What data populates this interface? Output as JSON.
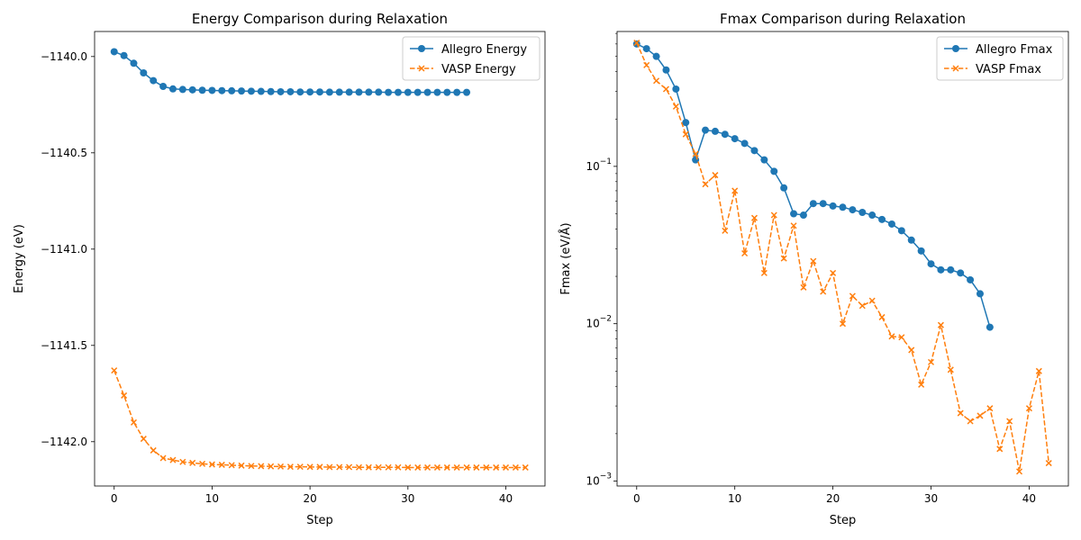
{
  "colors": {
    "allegro": "#1f77b4",
    "vasp": "#ff7f0e"
  },
  "chart_data": [
    {
      "type": "line",
      "title": "Energy Comparison during Relaxation",
      "xlabel": "Step",
      "ylabel": "Energy (eV)",
      "xlim": [
        -2,
        44
      ],
      "ylim": [
        -1142.23,
        -1139.87
      ],
      "xticks": [
        {
          "value": 0,
          "label": "0"
        },
        {
          "value": 10,
          "label": "10"
        },
        {
          "value": 20,
          "label": "20"
        },
        {
          "value": 30,
          "label": "30"
        },
        {
          "value": 40,
          "label": "40"
        }
      ],
      "yticks": [
        {
          "value": -1140.0,
          "label": "−1140.0"
        },
        {
          "value": -1140.5,
          "label": "−1140.5"
        },
        {
          "value": -1141.0,
          "label": "−1141.0"
        },
        {
          "value": -1141.5,
          "label": "−1141.5"
        },
        {
          "value": -1142.0,
          "label": "−1142.0"
        }
      ],
      "yscale": "linear",
      "grid": false,
      "legend": "top-right",
      "series": [
        {
          "name": "Allegro Energy",
          "color": "#1f77b4",
          "linestyle": "solid",
          "marker": "circle",
          "x": [
            0,
            1,
            2,
            3,
            4,
            5,
            6,
            7,
            8,
            9,
            10,
            11,
            12,
            13,
            14,
            15,
            16,
            17,
            18,
            19,
            20,
            21,
            22,
            23,
            24,
            25,
            26,
            27,
            28,
            29,
            30,
            31,
            32,
            33,
            34,
            35,
            36
          ],
          "values": [
            -1139.975,
            -1139.995,
            -1140.035,
            -1140.085,
            -1140.125,
            -1140.155,
            -1140.168,
            -1140.171,
            -1140.173,
            -1140.175,
            -1140.176,
            -1140.177,
            -1140.178,
            -1140.179,
            -1140.18,
            -1140.181,
            -1140.182,
            -1140.183,
            -1140.183,
            -1140.184,
            -1140.184,
            -1140.184,
            -1140.185,
            -1140.185,
            -1140.185,
            -1140.185,
            -1140.185,
            -1140.185,
            -1140.186,
            -1140.186,
            -1140.186,
            -1140.186,
            -1140.186,
            -1140.186,
            -1140.186,
            -1140.186,
            -1140.186
          ]
        },
        {
          "name": "VASP Energy",
          "color": "#ff7f0e",
          "linestyle": "dashed",
          "marker": "x",
          "x": [
            0,
            1,
            2,
            3,
            4,
            5,
            6,
            7,
            8,
            9,
            10,
            11,
            12,
            13,
            14,
            15,
            16,
            17,
            18,
            19,
            20,
            21,
            22,
            23,
            24,
            25,
            26,
            27,
            28,
            29,
            30,
            31,
            32,
            33,
            34,
            35,
            36,
            37,
            38,
            39,
            40,
            41,
            42
          ],
          "values": [
            -1141.63,
            -1141.76,
            -1141.9,
            -1141.985,
            -1142.045,
            -1142.085,
            -1142.095,
            -1142.105,
            -1142.11,
            -1142.115,
            -1142.118,
            -1142.12,
            -1142.122,
            -1142.124,
            -1142.126,
            -1142.127,
            -1142.128,
            -1142.129,
            -1142.13,
            -1142.13,
            -1142.131,
            -1142.131,
            -1142.132,
            -1142.132,
            -1142.132,
            -1142.133,
            -1142.133,
            -1142.133,
            -1142.133,
            -1142.133,
            -1142.134,
            -1142.134,
            -1142.134,
            -1142.134,
            -1142.134,
            -1142.134,
            -1142.134,
            -1142.134,
            -1142.134,
            -1142.134,
            -1142.134,
            -1142.134,
            -1142.134
          ]
        }
      ]
    },
    {
      "type": "line",
      "title": "Fmax Comparison during Relaxation",
      "xlabel": "Step",
      "ylabel": "Fmax (eV/Å)",
      "xlim": [
        -2,
        44
      ],
      "ylim": [
        0.00093,
        0.72
      ],
      "xticks": [
        {
          "value": 0,
          "label": "0"
        },
        {
          "value": 10,
          "label": "10"
        },
        {
          "value": 20,
          "label": "20"
        },
        {
          "value": 30,
          "label": "30"
        },
        {
          "value": 40,
          "label": "40"
        }
      ],
      "yticks": [
        {
          "value": 0.1,
          "label": "10",
          "exp": "−1"
        },
        {
          "value": 0.01,
          "label": "10",
          "exp": "−2"
        },
        {
          "value": 0.001,
          "label": "10",
          "exp": "−3"
        }
      ],
      "yscale": "log",
      "grid": false,
      "legend": "top-right",
      "series": [
        {
          "name": "Allegro Fmax",
          "color": "#1f77b4",
          "linestyle": "solid",
          "marker": "circle",
          "x": [
            0,
            1,
            2,
            3,
            4,
            5,
            6,
            7,
            8,
            9,
            10,
            11,
            12,
            13,
            14,
            15,
            16,
            17,
            18,
            19,
            20,
            21,
            22,
            23,
            24,
            25,
            26,
            27,
            28,
            29,
            30,
            31,
            32,
            33,
            34,
            35,
            36
          ],
          "values": [
            0.6,
            0.56,
            0.5,
            0.41,
            0.31,
            0.19,
            0.11,
            0.17,
            0.167,
            0.16,
            0.15,
            0.14,
            0.126,
            0.11,
            0.093,
            0.073,
            0.05,
            0.049,
            0.058,
            0.058,
            0.056,
            0.055,
            0.053,
            0.051,
            0.049,
            0.046,
            0.043,
            0.039,
            0.034,
            0.029,
            0.024,
            0.022,
            0.022,
            0.021,
            0.019,
            0.0155,
            0.0095
          ]
        },
        {
          "name": "VASP Fmax",
          "color": "#ff7f0e",
          "linestyle": "dashed",
          "marker": "x",
          "x": [
            0,
            1,
            2,
            3,
            4,
            5,
            6,
            7,
            8,
            9,
            10,
            11,
            12,
            13,
            14,
            15,
            16,
            17,
            18,
            19,
            20,
            21,
            22,
            23,
            24,
            25,
            26,
            27,
            28,
            29,
            30,
            31,
            32,
            33,
            34,
            35,
            36,
            37,
            38,
            39,
            40,
            41,
            42
          ],
          "values": [
            0.61,
            0.44,
            0.35,
            0.31,
            0.24,
            0.16,
            0.12,
            0.077,
            0.088,
            0.039,
            0.07,
            0.028,
            0.047,
            0.021,
            0.049,
            0.026,
            0.042,
            0.017,
            0.025,
            0.016,
            0.021,
            0.01,
            0.015,
            0.013,
            0.014,
            0.011,
            0.0083,
            0.0082,
            0.0068,
            0.0041,
            0.0057,
            0.0098,
            0.0051,
            0.0027,
            0.0024,
            0.0026,
            0.0029,
            0.0016,
            0.0024,
            0.00115,
            0.0029,
            0.005,
            0.0013
          ]
        }
      ]
    }
  ]
}
